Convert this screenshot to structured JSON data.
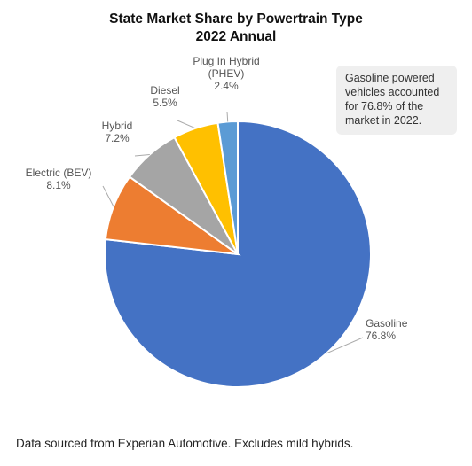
{
  "chart_data": {
    "type": "pie",
    "title": "State Market Share by Powertrain Type",
    "subtitle": "2022 Annual",
    "slices": [
      {
        "label": "Gasoline",
        "value_label": "76.8%",
        "value": 76.8,
        "color": "#4472c4"
      },
      {
        "label": "Electric (BEV)",
        "value_label": "8.1%",
        "value": 8.1,
        "color": "#ed7d31"
      },
      {
        "label": "Hybrid",
        "value_label": "7.2%",
        "value": 7.2,
        "color": "#a5a5a5"
      },
      {
        "label": "Diesel",
        "value_label": "5.5%",
        "value": 5.5,
        "color": "#ffc000"
      },
      {
        "label": "Plug In Hybrid\n(PHEV)",
        "value_label": "2.4%",
        "value": 2.4,
        "color": "#5b9bd5"
      }
    ],
    "annotation": "Gasoline powered vehicles accounted for 76.8% of the market in 2022."
  },
  "footnote": "Data sourced from Experian Automotive. Excludes mild hybrids."
}
